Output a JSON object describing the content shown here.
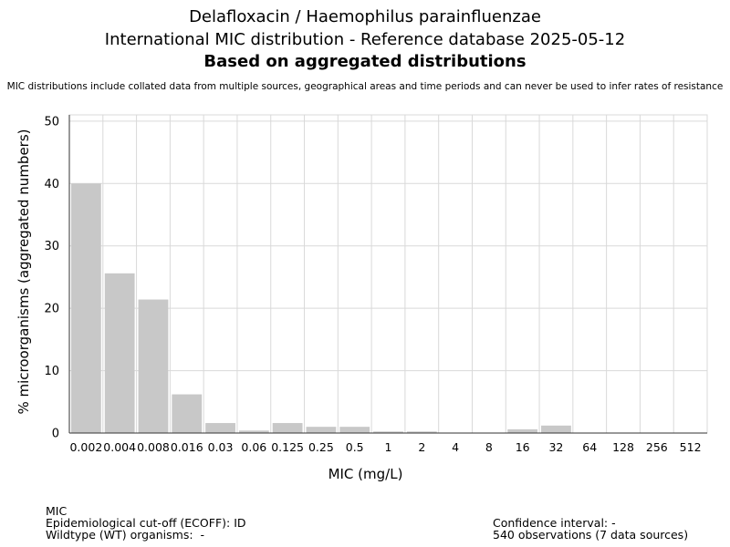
{
  "header": {
    "line1": "Delafloxacin / Haemophilus parainfluenzae",
    "line2": "International MIC distribution - Reference database 2025-05-12",
    "line3": "Based on aggregated distributions",
    "note": "MIC distributions include collated data from multiple sources, geographical areas and time periods and can never be used to infer rates of resistance"
  },
  "chart_data": {
    "type": "bar",
    "xlabel": "MIC (mg/L)",
    "ylabel": "% microorganisms (aggregated numbers)",
    "categories": [
      "0.002",
      "0.004",
      "0.008",
      "0.016",
      "0.03",
      "0.06",
      "0.125",
      "0.25",
      "0.5",
      "1",
      "2",
      "4",
      "8",
      "16",
      "32",
      "64",
      "128",
      "256",
      "512"
    ],
    "values": [
      40.0,
      25.6,
      21.4,
      6.2,
      1.6,
      0.4,
      1.6,
      1.0,
      1.0,
      0.25,
      0.25,
      0,
      0,
      0.6,
      1.2,
      0,
      0,
      0,
      0
    ],
    "ylim": [
      0,
      51
    ],
    "yticks": [
      0,
      10,
      20,
      30,
      40,
      50
    ],
    "grid": true,
    "bar_color": "#c8c8c8",
    "grid_color": "#d9d9d9"
  },
  "footer": {
    "left": [
      "MIC",
      "Epidemiological cut-off (ECOFF): ID",
      "Wildtype (WT) organisms:  -"
    ],
    "right": [
      "Confidence interval: -",
      "540 observations (7 data sources)"
    ]
  }
}
